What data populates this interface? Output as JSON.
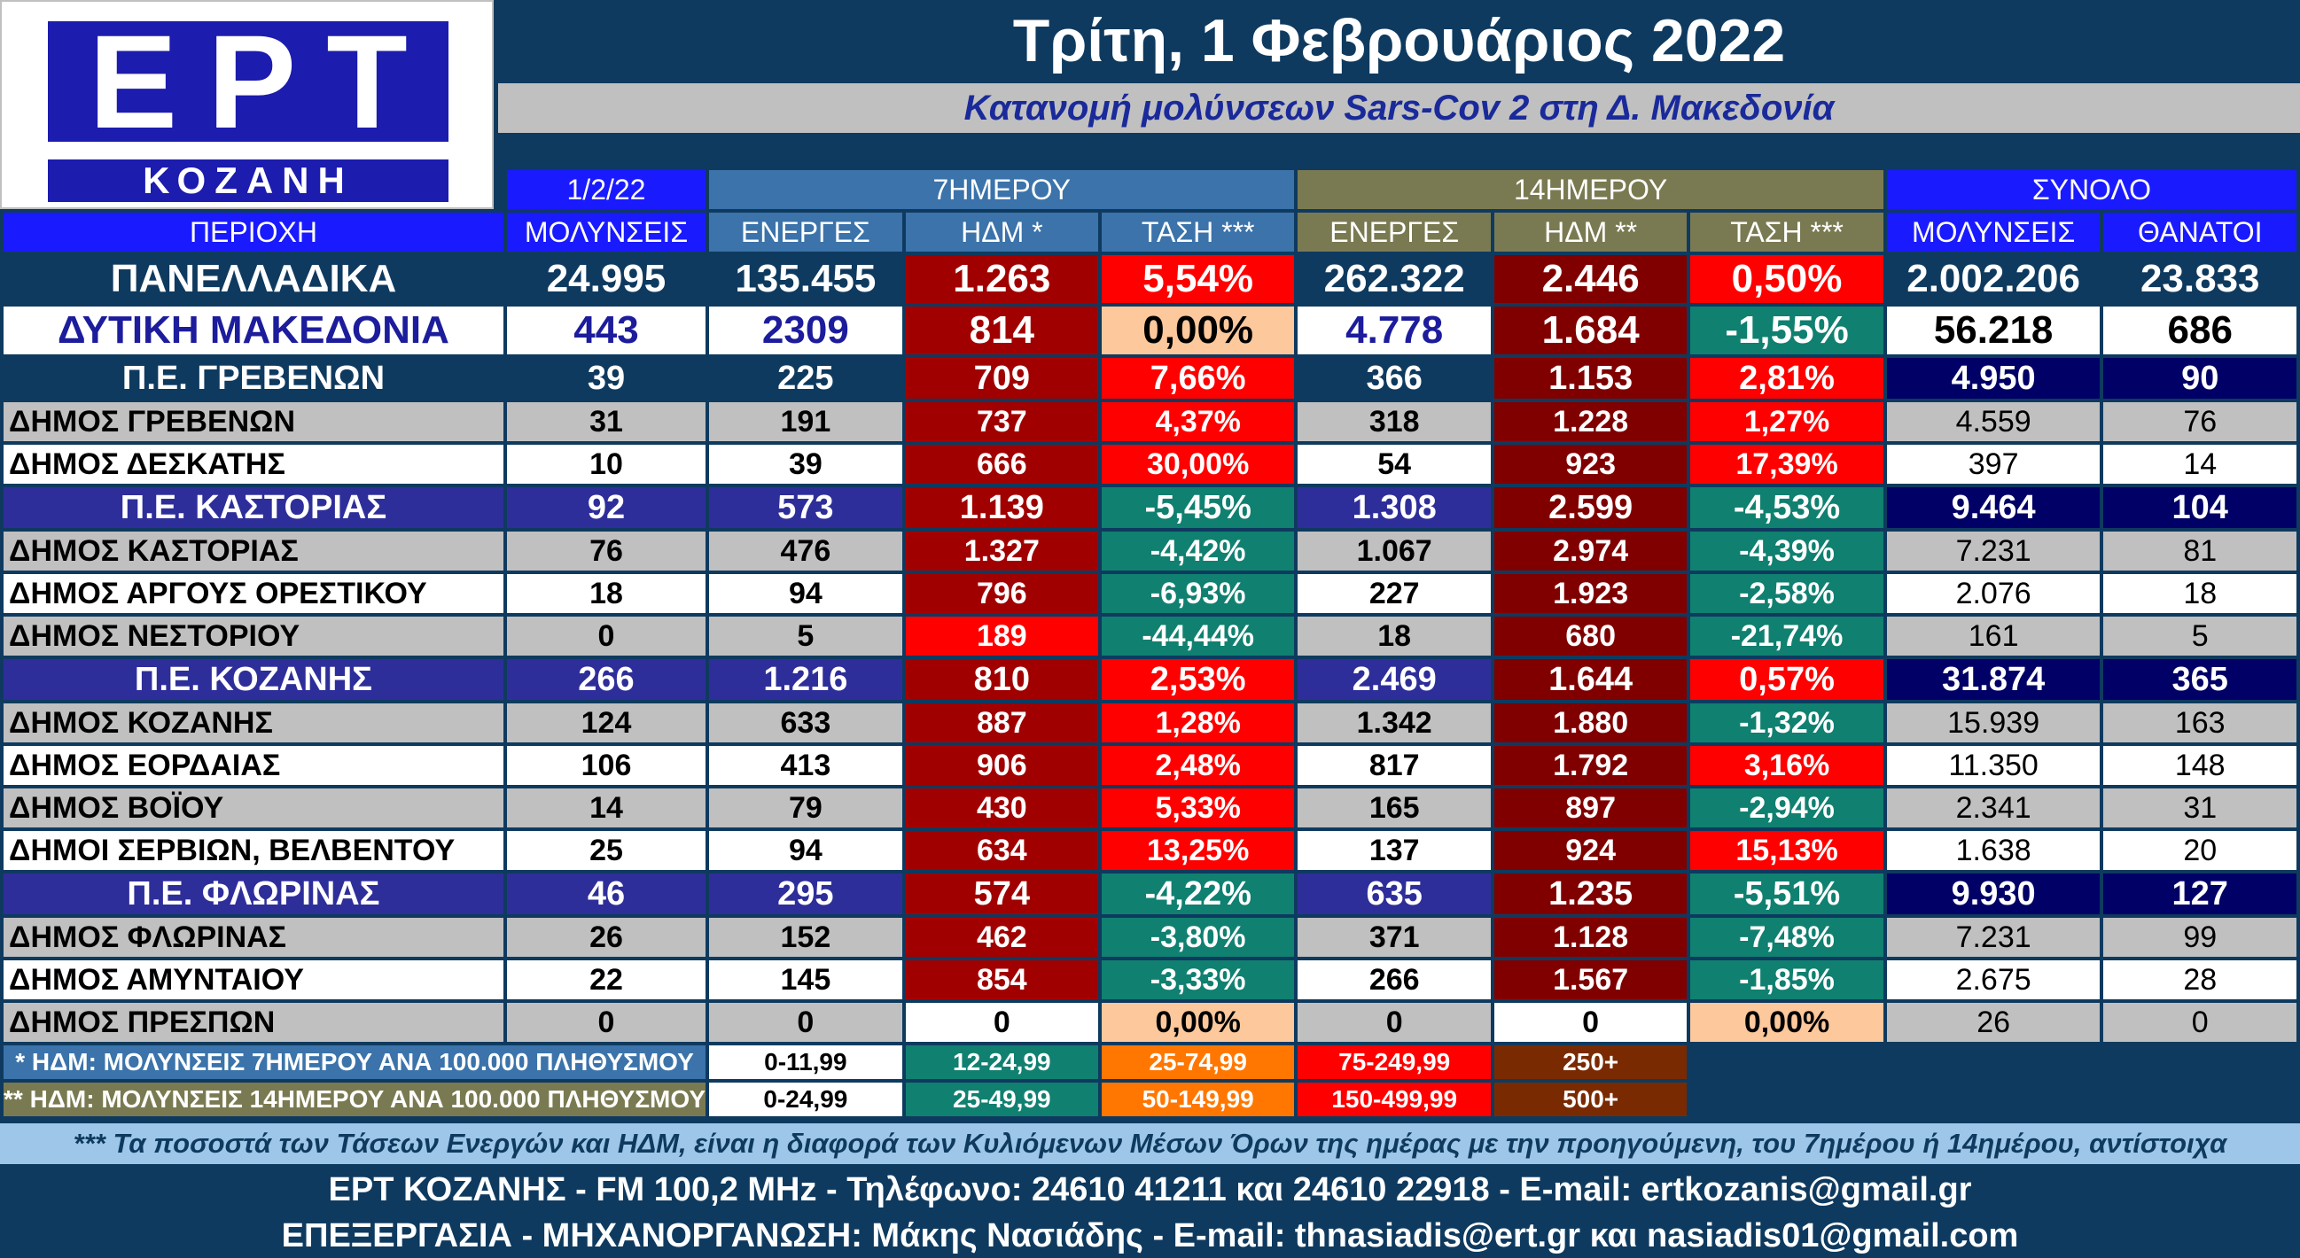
{
  "logo": {
    "ept": "ΕΡΤ",
    "city": "ΚΟΖΑΝΗ"
  },
  "title": "Τρίτη, 1 Φεβρουάριος 2022",
  "subtitle": "Κατανομή μολύνσεων Sars-Cov 2 στη Δ. Μακεδονία",
  "header": {
    "date": "1/2/22",
    "group7": "7ΗΜΕΡΟΥ",
    "group14": "14ΗΜΕΡΟΥ",
    "total": "ΣΥΝΟΛΟ",
    "cols": [
      "ΠΕΡΙΟΧΗ",
      "ΜΟΛΥΝΣΕΙΣ",
      "ΕΝΕΡΓΕΣ",
      "ΗΔΜ *",
      "ΤΑΣΗ ***",
      "ΕΝΕΡΓΕΣ",
      "ΗΔΜ **",
      "ΤΑΣΗ ***",
      "ΜΟΛΥΝΣΕΙΣ",
      "ΘΑΝΑΤΟΙ"
    ]
  },
  "rows": [
    [
      "ΠΑΝΕΛΛΑΔΙΚΑ",
      "24.995",
      "135.455",
      "1.263",
      "5,54%",
      "262.322",
      "2.446",
      "0,50%",
      "2.002.206",
      "23.833"
    ],
    [
      "ΔΥΤΙΚΗ ΜΑΚΕΔΟΝΙΑ",
      "443",
      "2309",
      "814",
      "0,00%",
      "4.778",
      "1.684",
      "-1,55%",
      "56.218",
      "686"
    ],
    [
      "Π.Ε. ΓΡΕΒΕΝΩΝ",
      "39",
      "225",
      "709",
      "7,66%",
      "366",
      "1.153",
      "2,81%",
      "4.950",
      "90"
    ],
    [
      "ΔΗΜΟΣ ΓΡΕΒΕΝΩΝ",
      "31",
      "191",
      "737",
      "4,37%",
      "318",
      "1.228",
      "1,27%",
      "4.559",
      "76"
    ],
    [
      "ΔΗΜΟΣ ΔΕΣΚΑΤΗΣ",
      "10",
      "39",
      "666",
      "30,00%",
      "54",
      "923",
      "17,39%",
      "397",
      "14"
    ],
    [
      "Π.Ε. ΚΑΣΤΟΡΙΑΣ",
      "92",
      "573",
      "1.139",
      "-5,45%",
      "1.308",
      "2.599",
      "-4,53%",
      "9.464",
      "104"
    ],
    [
      "ΔΗΜΟΣ ΚΑΣΤΟΡΙΑΣ",
      "76",
      "476",
      "1.327",
      "-4,42%",
      "1.067",
      "2.974",
      "-4,39%",
      "7.231",
      "81"
    ],
    [
      "ΔΗΜΟΣ ΑΡΓΟΥΣ ΟΡΕΣΤΙΚΟΥ",
      "18",
      "94",
      "796",
      "-6,93%",
      "227",
      "1.923",
      "-2,58%",
      "2.076",
      "18"
    ],
    [
      "ΔΗΜΟΣ ΝΕΣΤΟΡΙΟΥ",
      "0",
      "5",
      "189",
      "-44,44%",
      "18",
      "680",
      "-21,74%",
      "161",
      "5"
    ],
    [
      "Π.Ε. ΚΟΖΑΝΗΣ",
      "266",
      "1.216",
      "810",
      "2,53%",
      "2.469",
      "1.644",
      "0,57%",
      "31.874",
      "365"
    ],
    [
      "ΔΗΜΟΣ ΚΟΖΑΝΗΣ",
      "124",
      "633",
      "887",
      "1,28%",
      "1.342",
      "1.880",
      "-1,32%",
      "15.939",
      "163"
    ],
    [
      "ΔΗΜΟΣ ΕΟΡΔΑΙΑΣ",
      "106",
      "413",
      "906",
      "2,48%",
      "817",
      "1.792",
      "3,16%",
      "11.350",
      "148"
    ],
    [
      "ΔΗΜΟΣ ΒΟΪΟΥ",
      "14",
      "79",
      "430",
      "5,33%",
      "165",
      "897",
      "-2,94%",
      "2.341",
      "31"
    ],
    [
      "ΔΗΜΟΙ ΣΕΡΒΙΩΝ, ΒΕΛΒΕΝΤΟΥ",
      "25",
      "94",
      "634",
      "13,25%",
      "137",
      "924",
      "15,13%",
      "1.638",
      "20"
    ],
    [
      "Π.Ε. ΦΛΩΡΙΝΑΣ",
      "46",
      "295",
      "574",
      "-4,22%",
      "635",
      "1.235",
      "-5,51%",
      "9.930",
      "127"
    ],
    [
      "ΔΗΜΟΣ ΦΛΩΡΙΝΑΣ",
      "26",
      "152",
      "462",
      "-3,80%",
      "371",
      "1.128",
      "-7,48%",
      "7.231",
      "99"
    ],
    [
      "ΔΗΜΟΣ ΑΜΥΝΤΑΙΟΥ",
      "22",
      "145",
      "854",
      "-3,33%",
      "266",
      "1.567",
      "-1,85%",
      "2.675",
      "28"
    ],
    [
      "ΔΗΜΟΣ ΠΡΕΣΠΩΝ",
      "0",
      "0",
      "0",
      "0,00%",
      "0",
      "0",
      "0,00%",
      "26",
      "0"
    ]
  ],
  "legend": {
    "l7": "* ΗΔΜ: ΜΟΛΥΝΣΕΙΣ 7ΗΜΕΡΟΥ ΑΝΑ 100.000 ΠΛΗΘΥΣΜΟΥ",
    "l7_ranges": [
      "0-11,99",
      "12-24,99",
      "25-74,99",
      "75-249,99",
      "250+"
    ],
    "l14": "** ΗΔΜ: ΜΟΛΥΝΣΕΙΣ 14ΗΜΕΡΟΥ ΑΝΑ 100.000 ΠΛΗΘΥΣΜΟΥ",
    "l14_ranges": [
      "0-24,99",
      "25-49,99",
      "50-149,99",
      "150-499,99",
      "500+"
    ]
  },
  "note": "*** Τα ποσοστά των Τάσεων Ενεργών και ΗΔΜ, είναι η διαφορά των Κυλιόμενων Μέσων Όρων της ημέρας με την προηγούμενη, του 7ημέρου ή 14ημέρου, αντίστοιχα",
  "footer": {
    "line1": "ΕΡΤ ΚΟΖΑΝΗΣ - FM 100,2 MHz - Τηλέφωνο:  24610 41211 και 24610 22918 - E-mail: ertkozanis@gmail.gr",
    "line2": "ΕΠΕΞΕΡΓΑΣΙΑ  -  ΜΗΧΑΝΟΡΓΑΝΩΣΗ: Μάκης Νασιάδης  -   E-mail: thnasiadis@ert.gr και nasiadis01@gmail.com"
  },
  "colors": {
    "background": "#0f3a5f",
    "header_blue": "#1a1aff",
    "steel": "#3b73aa",
    "olive": "#7a7a52",
    "dark_red": "#a10000",
    "bright_red": "#ff0000",
    "teal": "#108070",
    "peach": "#fcc89c"
  }
}
